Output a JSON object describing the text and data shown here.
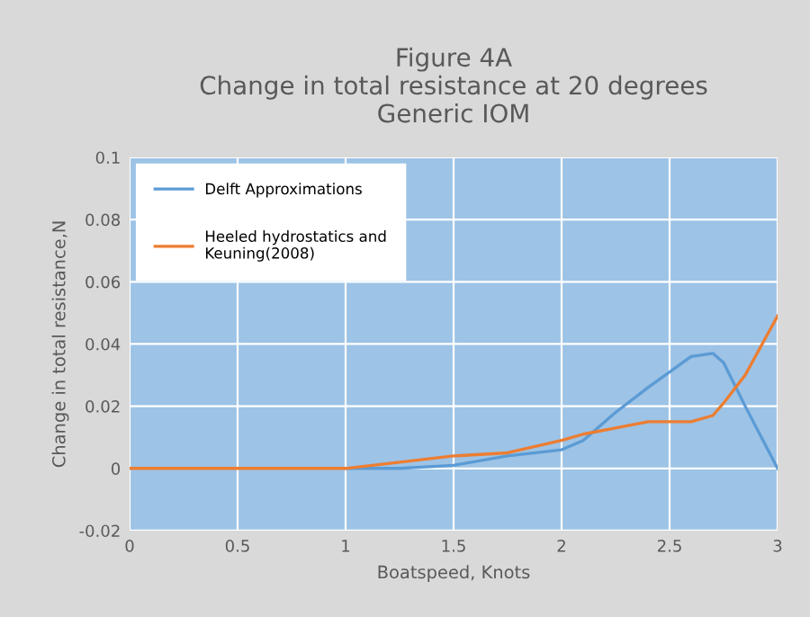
{
  "chart_data": {
    "type": "line",
    "title": "Figure 4A\nChange in total resistance at 20 degrees\nGeneric IOM",
    "xlabel": "Boatspeed, Knots",
    "ylabel": "Change in total resistance,N",
    "x": [
      0,
      0.25,
      0.5,
      0.75,
      1.0,
      1.25,
      1.5,
      1.75,
      2.0,
      2.1,
      2.25,
      2.4,
      2.5,
      2.6,
      2.7,
      2.75,
      2.85,
      3.0
    ],
    "series": [
      {
        "name": "Delft Approximations",
        "color": "#5b9bd5",
        "values": [
          null,
          null,
          null,
          null,
          0,
          0,
          0.001,
          0.004,
          0.006,
          0.009,
          0.018,
          0.026,
          0.031,
          0.036,
          0.037,
          0.034,
          0.02,
          0
        ]
      },
      {
        "name": "Heeled hydrostatics and\nKeuning(2008)",
        "color": "#ed7d31",
        "values": [
          0,
          0,
          0,
          0,
          0,
          0.002,
          0.004,
          0.005,
          0.009,
          0.011,
          0.013,
          0.015,
          0.015,
          0.015,
          0.017,
          0.021,
          0.03,
          0.049
        ]
      }
    ],
    "xlim": [
      0,
      3
    ],
    "xticks": [
      0,
      0.5,
      1,
      1.5,
      2,
      2.5,
      3
    ],
    "ylim": [
      -0.02,
      0.1
    ],
    "yticks": [
      -0.02,
      0,
      0.02,
      0.04,
      0.06,
      0.08,
      0.1
    ],
    "grid": true,
    "legend": "top left",
    "marker": "none",
    "line_style": "solid"
  }
}
